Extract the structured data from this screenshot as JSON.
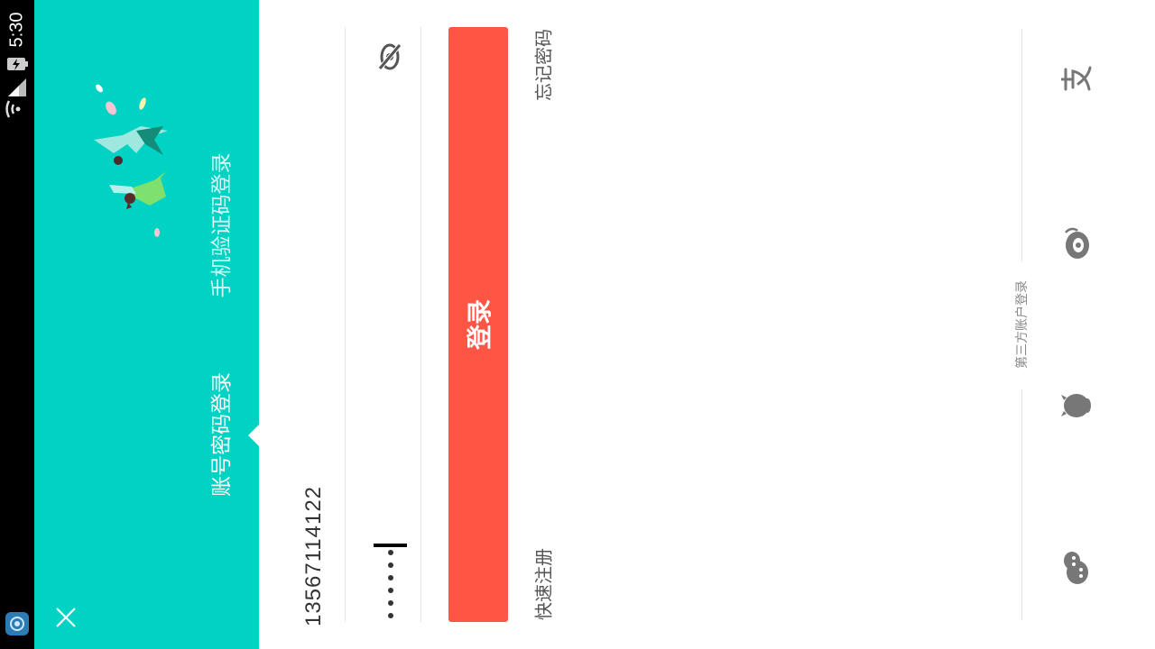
{
  "status_bar": {
    "time": "5:30",
    "icons": [
      "wifi-icon",
      "signal-icon",
      "battery-charging-icon",
      "notification-app-icon"
    ]
  },
  "header": {
    "tabs": [
      {
        "label": "账号密码登录",
        "active": true
      },
      {
        "label": "手机验证码登录",
        "active": false
      }
    ],
    "illustration": "flying-girls-petals-illustration",
    "close_icon": "close-icon"
  },
  "form": {
    "phone_value": "13567114122",
    "password_mask": "••••••",
    "password_visibility_icon": "eye-hidden-icon",
    "login_label": "登录",
    "forgot_password": "忘记密码",
    "quick_register": "快速注册"
  },
  "third_party": {
    "title": "第三方账户登录",
    "providers": [
      "alipay-icon",
      "weibo-icon",
      "qq-icon",
      "wechat-icon"
    ]
  },
  "colors": {
    "header_bg": "#00d2c4",
    "login_button": "#ff5545",
    "status_bar": "#000000"
  }
}
